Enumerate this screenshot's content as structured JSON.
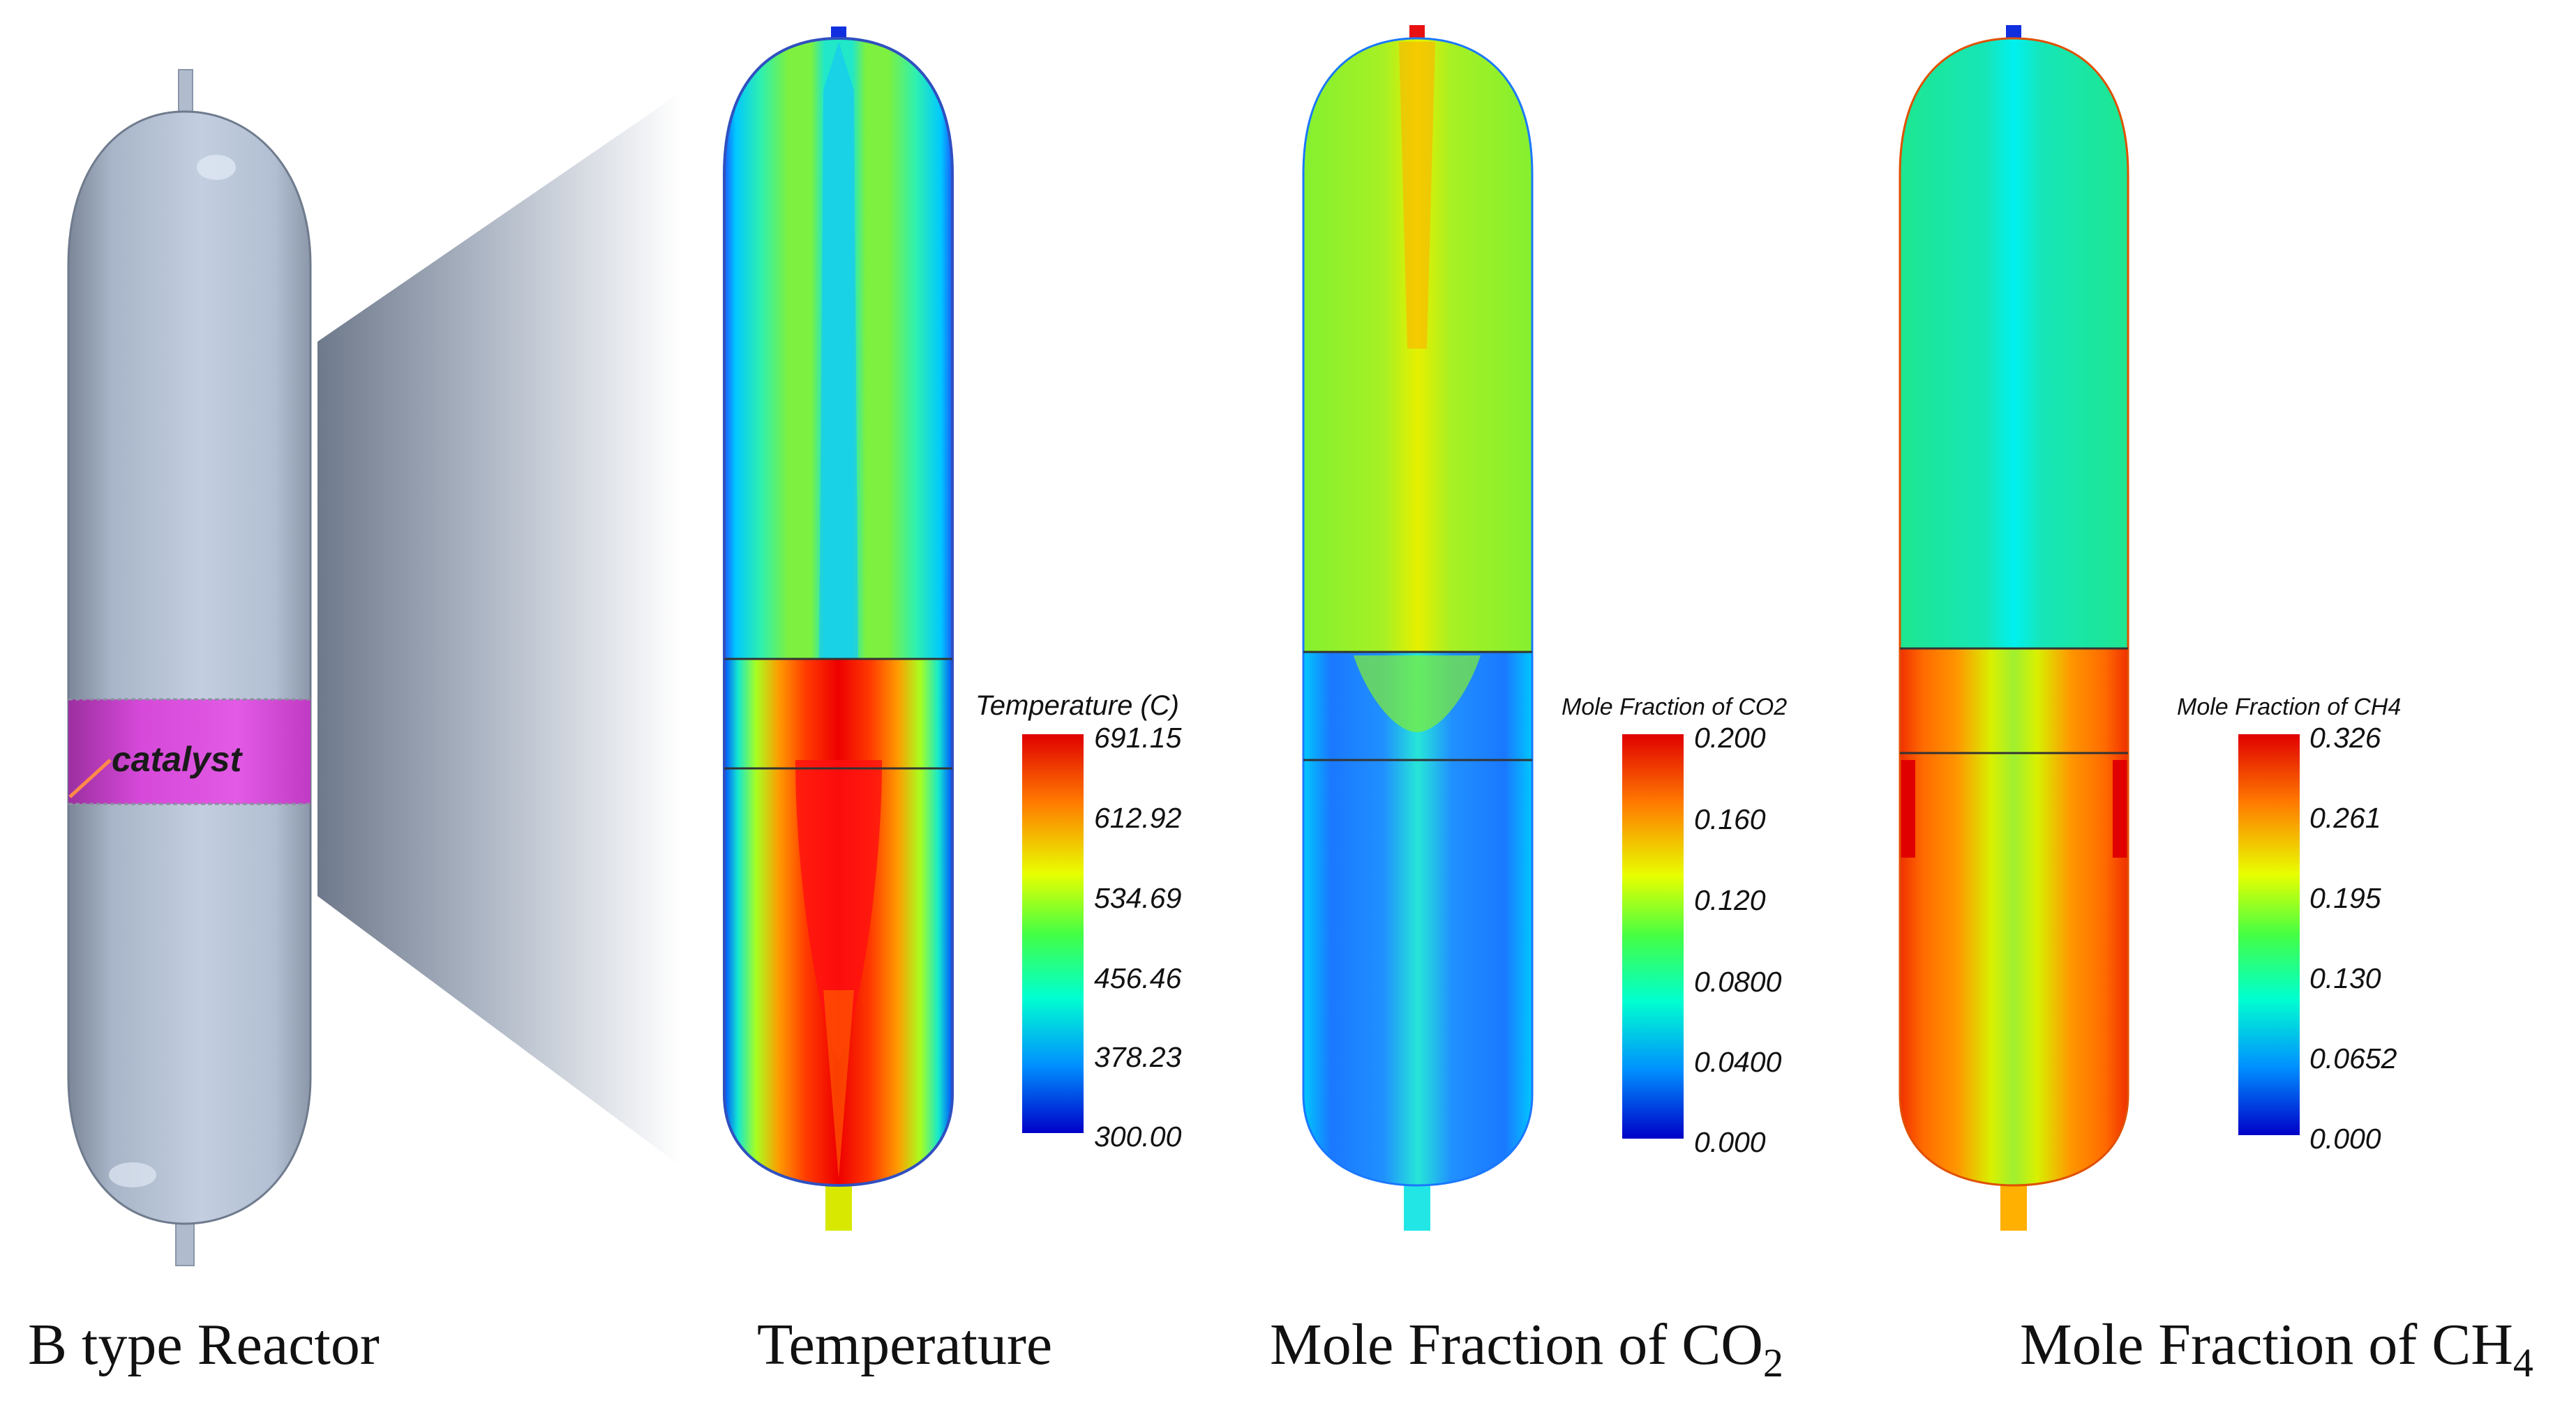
{
  "reactor": {
    "catalyst_label": "catalyst",
    "caption": "B type Reactor"
  },
  "panels": [
    {
      "id": "temperature",
      "caption": "Temperature",
      "caption_sub": "",
      "legend_title": "Temperature (C)",
      "ticks": [
        "691.15",
        "612.92",
        "534.69",
        "456.46",
        "378.23",
        "300.00"
      ]
    },
    {
      "id": "co2",
      "caption": "Mole Fraction of CO",
      "caption_sub": "2",
      "legend_title": "Mole Fraction of CO2",
      "ticks": [
        "0.200",
        "0.160",
        "0.120",
        "0.0800",
        "0.0400",
        "0.000"
      ]
    },
    {
      "id": "ch4",
      "caption": "Mole Fraction of CH",
      "caption_sub": "4",
      "legend_title": "Mole Fraction of CH4",
      "ticks": [
        "0.326",
        "0.261",
        "0.195",
        "0.130",
        "0.0652",
        "0.000"
      ]
    }
  ],
  "colors": {
    "vessel": "#b4c2d6",
    "catalyst": "#d43fd6",
    "scale": [
      "#e00000",
      "#ff8c00",
      "#e8ff00",
      "#44ff44",
      "#00ffd0",
      "#0070ff",
      "#0000c8"
    ]
  }
}
